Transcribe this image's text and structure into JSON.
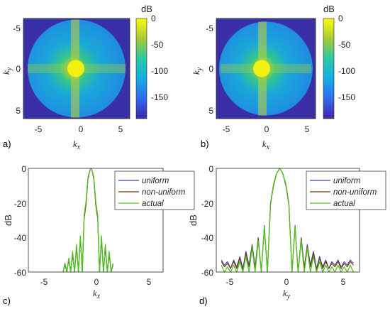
{
  "chart_data": [
    {
      "panel_label": "a)",
      "type": "heatmap",
      "xlabel_base": "k",
      "xlabel_sub": "x",
      "ylabel_base": "k",
      "ylabel_sub": "y",
      "xlim": [
        -7,
        7
      ],
      "ylim": [
        -7,
        7
      ],
      "y_reversed": true,
      "xticks": [
        -5,
        0,
        5
      ],
      "yticks": [
        -5,
        0,
        5
      ],
      "colorbar": {
        "label": "dB",
        "ticks": [
          0,
          -50,
          -100,
          -150
        ],
        "range": [
          -190,
          0
        ]
      },
      "visible_radius": 6.28,
      "peak": [
        -0.5,
        0
      ]
    },
    {
      "panel_label": "b)",
      "type": "heatmap",
      "xlabel_base": "k",
      "xlabel_sub": "x",
      "ylabel_base": "k",
      "ylabel_sub": "y",
      "xlim": [
        -7,
        7
      ],
      "ylim": [
        -7,
        7
      ],
      "y_reversed": true,
      "xticks": [
        -5,
        0,
        5
      ],
      "yticks": [
        -5,
        0,
        5
      ],
      "colorbar": {
        "label": "dB",
        "ticks": [
          0,
          -50,
          -100,
          -150
        ],
        "range": [
          -190,
          0
        ]
      },
      "visible_radius": 6.28,
      "peak": [
        -0.5,
        0
      ]
    },
    {
      "panel_label": "c)",
      "type": "line",
      "xlabel_base": "k",
      "xlabel_sub": "x",
      "ylabel": "dB",
      "xlim": [
        -7,
        7
      ],
      "ylim": [
        -60,
        0
      ],
      "xticks": [
        -5,
        0,
        5
      ],
      "yticks": [
        0,
        -20,
        -40,
        -60
      ],
      "legend_position": "top-right",
      "series": [
        {
          "name": "uniform",
          "color": "#4a3aa8",
          "x": [
            -3.4,
            -3.2,
            -3.0,
            -2.8,
            -2.6,
            -2.4,
            -2.2,
            -2.0,
            -1.8,
            -1.6,
            -1.4,
            -1.2,
            -1.0,
            -0.8,
            -0.6,
            -0.5,
            -0.4,
            -0.2,
            0.0,
            0.2,
            0.4,
            0.6,
            0.8,
            1.0,
            1.2,
            1.4,
            1.6,
            1.8
          ],
          "y": [
            -60,
            -55,
            -60,
            -52,
            -60,
            -49,
            -60,
            -45,
            -60,
            -40,
            -60,
            -28,
            -20,
            -6,
            -1,
            0,
            -1,
            -6,
            -20,
            -28,
            -60,
            -40,
            -60,
            -45,
            -60,
            -49,
            -60,
            -55
          ]
        },
        {
          "name": "non-uniform",
          "color": "#6b3a0a",
          "x": [
            -3.4,
            -3.2,
            -3.0,
            -2.8,
            -2.6,
            -2.4,
            -2.2,
            -2.0,
            -1.8,
            -1.6,
            -1.4,
            -1.2,
            -1.0,
            -0.8,
            -0.6,
            -0.5,
            -0.4,
            -0.2,
            0.0,
            0.2,
            0.4,
            0.6,
            0.8,
            1.0,
            1.2,
            1.4,
            1.6,
            1.8
          ],
          "y": [
            -60,
            -56,
            -60,
            -53,
            -60,
            -50,
            -60,
            -46,
            -60,
            -41,
            -60,
            -29,
            -21,
            -6,
            -1,
            0,
            -1,
            -6,
            -21,
            -29,
            -60,
            -41,
            -60,
            -46,
            -60,
            -50,
            -60,
            -56
          ]
        },
        {
          "name": "actual",
          "color": "#4fc21e",
          "x": [
            -3.4,
            -3.2,
            -3.0,
            -2.8,
            -2.6,
            -2.4,
            -2.2,
            -2.0,
            -1.8,
            -1.6,
            -1.4,
            -1.2,
            -1.0,
            -0.8,
            -0.6,
            -0.5,
            -0.4,
            -0.2,
            0.0,
            0.2,
            0.4,
            0.6,
            0.8,
            1.0,
            1.2,
            1.4,
            1.6,
            1.8
          ],
          "y": [
            -60,
            -55,
            -60,
            -52,
            -60,
            -48,
            -60,
            -44,
            -60,
            -39,
            -60,
            -27,
            -19,
            -5,
            -1,
            0,
            -1,
            -5,
            -19,
            -27,
            -60,
            -39,
            -60,
            -44,
            -60,
            -48,
            -60,
            -55
          ]
        }
      ]
    },
    {
      "panel_label": "d)",
      "type": "line",
      "xlabel_base": "k",
      "xlabel_sub": "y",
      "ylabel": "dB",
      "xlim": [
        -7,
        7
      ],
      "ylim": [
        -60,
        0
      ],
      "xticks": [
        -5,
        0,
        5
      ],
      "yticks": [
        0,
        -20,
        -40,
        -60
      ],
      "legend_position": "top-right",
      "series": [
        {
          "name": "uniform",
          "color": "#4a3aa8",
          "x": [
            -6.5,
            -6.2,
            -5.9,
            -5.6,
            -5.3,
            -5.0,
            -4.7,
            -4.4,
            -4.1,
            -3.8,
            -3.5,
            -3.2,
            -2.9,
            -2.6,
            -2.3,
            -2.0,
            -1.7,
            -1.4,
            -1.1,
            -0.8,
            -0.5,
            -0.2,
            0.1,
            0.4,
            0.7,
            1.0,
            1.3,
            1.6,
            1.9,
            2.2,
            2.5,
            2.8,
            3.1,
            3.4,
            3.7,
            4.0,
            4.3,
            4.6,
            4.9,
            5.2,
            5.5,
            5.8,
            6.1,
            6.4
          ],
          "y": [
            -53,
            -56,
            -54,
            -58,
            -53,
            -57,
            -51,
            -58,
            -48,
            -56,
            -44,
            -57,
            -40,
            -60,
            -33,
            -60,
            -20,
            -9,
            -3,
            0,
            -3,
            -9,
            -20,
            -60,
            -33,
            -60,
            -40,
            -57,
            -44,
            -56,
            -48,
            -58,
            -51,
            -57,
            -53,
            -58,
            -54,
            -56,
            -53,
            -57,
            -54,
            -56,
            -53,
            -55
          ]
        },
        {
          "name": "non-uniform",
          "color": "#6b3a0a",
          "x": [
            -6.5,
            -6.2,
            -5.9,
            -5.6,
            -5.3,
            -5.0,
            -4.7,
            -4.4,
            -4.1,
            -3.8,
            -3.5,
            -3.2,
            -2.9,
            -2.6,
            -2.3,
            -2.0,
            -1.7,
            -1.4,
            -1.1,
            -0.8,
            -0.5,
            -0.2,
            0.1,
            0.4,
            0.7,
            1.0,
            1.3,
            1.6,
            1.9,
            2.2,
            2.5,
            2.8,
            3.1,
            3.4,
            3.7,
            4.0,
            4.3,
            4.6,
            4.9,
            5.2,
            5.5,
            5.8,
            6.1,
            6.4
          ],
          "y": [
            -54,
            -57,
            -55,
            -58,
            -54,
            -58,
            -52,
            -59,
            -49,
            -57,
            -45,
            -58,
            -41,
            -60,
            -34,
            -60,
            -21,
            -10,
            -3,
            0,
            -3,
            -10,
            -21,
            -60,
            -34,
            -60,
            -41,
            -58,
            -45,
            -57,
            -49,
            -59,
            -52,
            -58,
            -54,
            -58,
            -55,
            -57,
            -54,
            -58,
            -55,
            -57,
            -54,
            -56
          ]
        },
        {
          "name": "actual",
          "color": "#4fc21e",
          "x": [
            -6.5,
            -6.2,
            -5.9,
            -5.6,
            -5.3,
            -5.0,
            -4.7,
            -4.4,
            -4.1,
            -3.8,
            -3.5,
            -3.2,
            -2.9,
            -2.6,
            -2.3,
            -2.0,
            -1.7,
            -1.4,
            -1.1,
            -0.8,
            -0.5,
            -0.2,
            0.1,
            0.4,
            0.7,
            1.0,
            1.3,
            1.6,
            1.9,
            2.2,
            2.5,
            2.8,
            3.1,
            3.4,
            3.7,
            4.0,
            4.3,
            4.6,
            4.9,
            5.2,
            5.5,
            5.8,
            6.1,
            6.4
          ],
          "y": [
            -56,
            -60,
            -57,
            -60,
            -56,
            -60,
            -54,
            -60,
            -51,
            -60,
            -46,
            -60,
            -42,
            -60,
            -34,
            -60,
            -21,
            -9,
            -3,
            0,
            -3,
            -9,
            -21,
            -60,
            -34,
            -60,
            -42,
            -60,
            -46,
            -60,
            -51,
            -60,
            -54,
            -60,
            -56,
            -60,
            -57,
            -60,
            -56,
            -60,
            -57,
            -60,
            -56,
            -60
          ]
        }
      ]
    }
  ]
}
